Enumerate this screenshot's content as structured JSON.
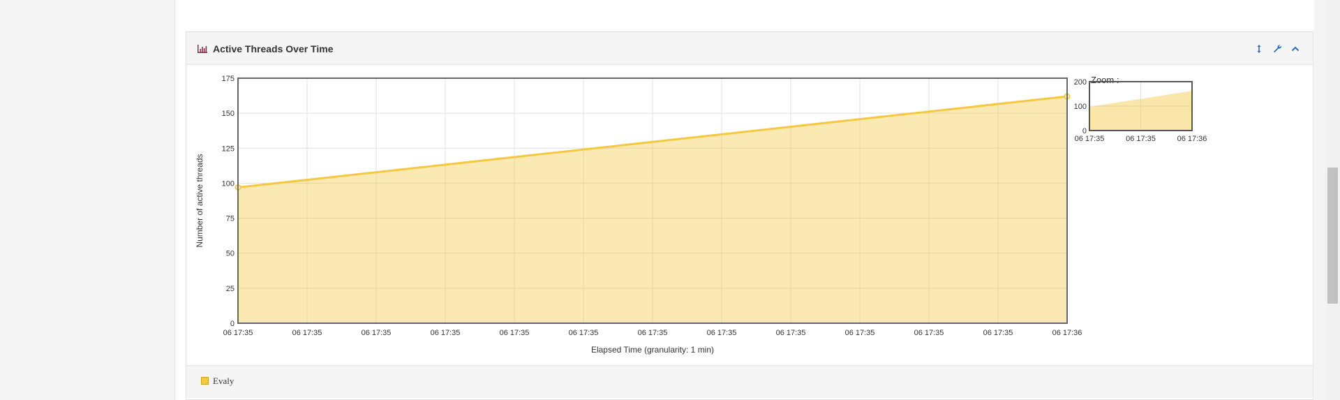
{
  "panel": {
    "title": "Active Threads Over Time",
    "icons": [
      "bar-chart-icon",
      "resize-icon",
      "wrench-icon",
      "collapse-icon"
    ]
  },
  "zoom": {
    "label": "Zoom :",
    "y_ticks": [
      "200",
      "100",
      "0"
    ],
    "x_ticks": [
      "06 17:35",
      "06 17:35",
      "06 17:36"
    ]
  },
  "legend": {
    "label": "Evaly",
    "color": "#f5c842"
  },
  "chart_data": {
    "type": "area",
    "title": "",
    "xlabel": "Elapsed Time (granularity: 1 min)",
    "ylabel": "Number of active threads",
    "ylim": [
      0,
      175
    ],
    "y_ticks": [
      "0",
      "25",
      "50",
      "75",
      "100",
      "125",
      "150",
      "175"
    ],
    "x_tick_labels": [
      "06 17:35",
      "06 17:35",
      "06 17:35",
      "06 17:35",
      "06 17:35",
      "06 17:35",
      "06 17:35",
      "06 17:35",
      "06 17:35",
      "06 17:35",
      "06 17:35",
      "06 17:35",
      "06 17:36"
    ],
    "series": [
      {
        "name": "Evaly",
        "x": [
          "06 17:35",
          "06 17:36"
        ],
        "values": [
          97,
          162
        ],
        "color": "#f5c842"
      }
    ],
    "grid": true,
    "legend_position": "bottom-left"
  }
}
